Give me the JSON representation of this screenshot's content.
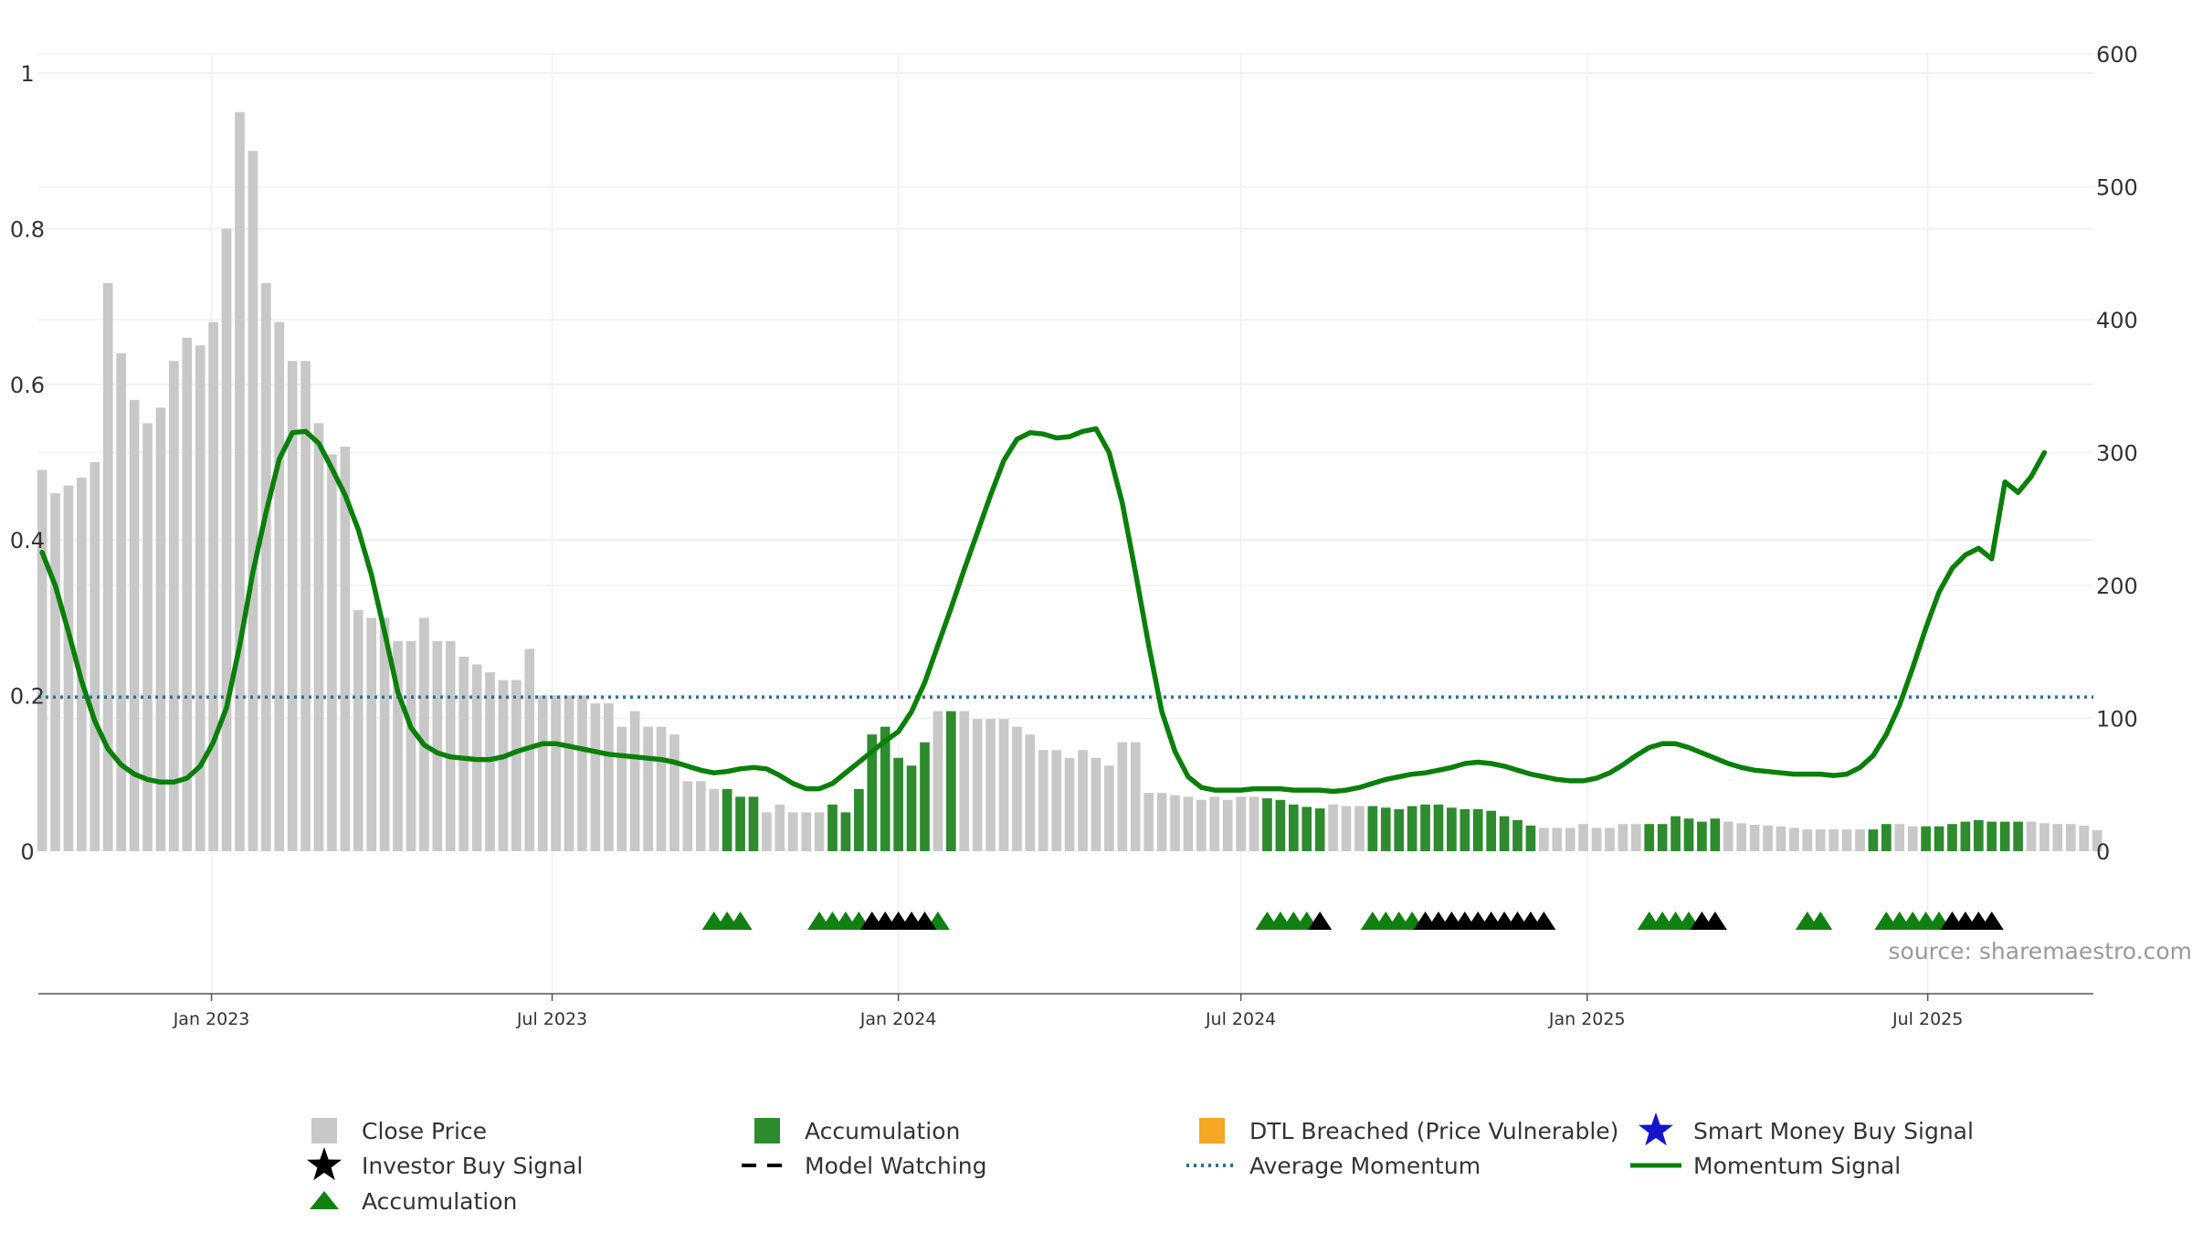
{
  "chart_data": {
    "type": "bar",
    "title": "",
    "xlabel": "",
    "ylabel_left": "",
    "ylabel_right": "",
    "left_axis": {
      "ylim": [
        0,
        1
      ],
      "ticks": [
        0,
        0.2,
        0.4,
        0.6,
        0.8,
        1
      ],
      "tick_labels": [
        "0",
        "0.2",
        "0.4",
        "0.6",
        "0.8",
        "1"
      ]
    },
    "right_axis": {
      "ylim": [
        0,
        620
      ],
      "ticks": [
        0,
        100,
        200,
        300,
        400,
        500,
        600
      ],
      "tick_labels": [
        "0",
        "100",
        "200",
        "300",
        "400",
        "500",
        "600"
      ]
    },
    "x_range": [
      "2022-10-01",
      "2025-09-27"
    ],
    "x_ticks": [
      {
        "date": "2023-01-01",
        "label": "Jan 2023"
      },
      {
        "date": "2023-07-01",
        "label": "Jul 2023"
      },
      {
        "date": "2024-01-01",
        "label": "Jan 2024"
      },
      {
        "date": "2024-07-01",
        "label": "Jul 2024"
      },
      {
        "date": "2025-01-01",
        "label": "Jan 2025"
      },
      {
        "date": "2025-07-01",
        "label": "Jul 2025"
      }
    ],
    "grid": true,
    "legend_position": "bottom",
    "source_text": "source: sharemaestro.com",
    "colors": {
      "close_price": "#c8c8c8",
      "accumulation_bar": "#2e8b2e",
      "dtl_breached": "#f5a623",
      "smart_money": "#1414cc",
      "investor_buy": "#000000",
      "accumulation_marker": "#108010",
      "model_watching": "#000000",
      "average_momentum": "#2a6f97",
      "momentum_signal": "#0a7f0a"
    },
    "bars": {
      "start_date": "2022-10-03",
      "frequency": "weekly",
      "values": [
        0.49,
        0.46,
        0.47,
        0.48,
        0.5,
        0.73,
        0.64,
        0.58,
        0.55,
        0.57,
        0.63,
        0.66,
        0.65,
        0.68,
        0.8,
        0.95,
        0.9,
        0.73,
        0.68,
        0.63,
        0.63,
        0.55,
        0.51,
        0.52,
        0.31,
        0.3,
        0.3,
        0.27,
        0.27,
        0.3,
        0.27,
        0.27,
        0.25,
        0.24,
        0.23,
        0.22,
        0.22,
        0.26,
        0.2,
        0.2,
        0.2,
        0.2,
        0.19,
        0.19,
        0.16,
        0.18,
        0.16,
        0.16,
        0.15,
        0.09,
        0.09,
        0.08,
        0.08,
        0.07,
        0.07,
        0.05,
        0.06,
        0.05,
        0.05,
        0.05,
        0.06,
        0.05,
        0.08,
        0.15,
        0.16,
        0.12,
        0.11,
        0.14,
        0.18,
        0.18,
        0.18,
        0.17,
        0.17,
        0.17,
        0.16,
        0.15,
        0.13,
        0.13,
        0.12,
        0.13,
        0.12,
        0.11,
        0.14,
        0.14,
        0.075,
        0.075,
        0.072,
        0.07,
        0.066,
        0.07,
        0.066,
        0.07,
        0.07,
        0.068,
        0.066,
        0.06,
        0.057,
        0.055,
        0.06,
        0.058,
        0.058,
        0.058,
        0.056,
        0.054,
        0.058,
        0.06,
        0.06,
        0.056,
        0.054,
        0.054,
        0.052,
        0.045,
        0.04,
        0.033,
        0.03,
        0.03,
        0.03,
        0.035,
        0.03,
        0.03,
        0.035,
        0.035,
        0.035,
        0.035,
        0.045,
        0.042,
        0.038,
        0.042,
        0.038,
        0.036,
        0.034,
        0.033,
        0.032,
        0.03,
        0.028,
        0.028,
        0.028,
        0.028,
        0.028,
        0.028,
        0.035,
        0.035,
        0.032,
        0.032,
        0.032,
        0.035,
        0.038,
        0.04,
        0.038,
        0.038,
        0.038,
        0.038,
        0.036,
        0.035,
        0.035,
        0.033,
        0.027
      ],
      "accumulation_ranges": [
        [
          52,
          54
        ],
        [
          60,
          67
        ],
        [
          69,
          69
        ],
        [
          93,
          97
        ],
        [
          101,
          113
        ],
        [
          122,
          127
        ],
        [
          139,
          140
        ],
        [
          143,
          150
        ]
      ]
    },
    "series": [
      {
        "name": "Momentum Signal",
        "axis": "right",
        "style": "solid",
        "points": [
          [
            "2022-10-03",
            225
          ],
          [
            "2022-10-10",
            200
          ],
          [
            "2022-10-17",
            165
          ],
          [
            "2022-10-24",
            128
          ],
          [
            "2022-10-31",
            98
          ],
          [
            "2022-11-07",
            77
          ],
          [
            "2022-11-14",
            65
          ],
          [
            "2022-11-21",
            58
          ],
          [
            "2022-11-28",
            54
          ],
          [
            "2022-12-05",
            52
          ],
          [
            "2022-12-12",
            52
          ],
          [
            "2022-12-19",
            55
          ],
          [
            "2022-12-26",
            64
          ],
          [
            "2023-01-02",
            82
          ],
          [
            "2023-01-09",
            108
          ],
          [
            "2023-01-16",
            155
          ],
          [
            "2023-01-23",
            210
          ],
          [
            "2023-01-30",
            255
          ],
          [
            "2023-02-06",
            295
          ],
          [
            "2023-02-13",
            315
          ],
          [
            "2023-02-20",
            316
          ],
          [
            "2023-02-27",
            307
          ],
          [
            "2023-03-06",
            288
          ],
          [
            "2023-03-13",
            268
          ],
          [
            "2023-03-20",
            242
          ],
          [
            "2023-03-27",
            208
          ],
          [
            "2023-04-03",
            165
          ],
          [
            "2023-04-10",
            120
          ],
          [
            "2023-04-17",
            93
          ],
          [
            "2023-04-24",
            80
          ],
          [
            "2023-05-01",
            74
          ],
          [
            "2023-05-08",
            71
          ],
          [
            "2023-05-15",
            70
          ],
          [
            "2023-05-22",
            69
          ],
          [
            "2023-05-29",
            69
          ],
          [
            "2023-06-05",
            71
          ],
          [
            "2023-06-12",
            75
          ],
          [
            "2023-06-19",
            78
          ],
          [
            "2023-06-26",
            81
          ],
          [
            "2023-07-03",
            81
          ],
          [
            "2023-07-10",
            79
          ],
          [
            "2023-07-17",
            77
          ],
          [
            "2023-07-24",
            75
          ],
          [
            "2023-07-31",
            73
          ],
          [
            "2023-08-07",
            72
          ],
          [
            "2023-08-14",
            71
          ],
          [
            "2023-08-21",
            70
          ],
          [
            "2023-08-28",
            69
          ],
          [
            "2023-09-04",
            67
          ],
          [
            "2023-09-11",
            64
          ],
          [
            "2023-09-18",
            61
          ],
          [
            "2023-09-25",
            59
          ],
          [
            "2023-10-02",
            60
          ],
          [
            "2023-10-09",
            62
          ],
          [
            "2023-10-16",
            63
          ],
          [
            "2023-10-23",
            62
          ],
          [
            "2023-10-30",
            57
          ],
          [
            "2023-11-06",
            51
          ],
          [
            "2023-11-13",
            47
          ],
          [
            "2023-11-20",
            47
          ],
          [
            "2023-11-27",
            51
          ],
          [
            "2023-12-04",
            59
          ],
          [
            "2023-12-11",
            67
          ],
          [
            "2023-12-18",
            75
          ],
          [
            "2023-12-25",
            83
          ],
          [
            "2024-01-01",
            90
          ],
          [
            "2024-01-08",
            105
          ],
          [
            "2024-01-15",
            127
          ],
          [
            "2024-01-22",
            155
          ],
          [
            "2024-01-29",
            183
          ],
          [
            "2024-02-05",
            212
          ],
          [
            "2024-02-12",
            240
          ],
          [
            "2024-02-19",
            268
          ],
          [
            "2024-02-26",
            294
          ],
          [
            "2024-03-04",
            310
          ],
          [
            "2024-03-11",
            315
          ],
          [
            "2024-03-18",
            314
          ],
          [
            "2024-03-25",
            311
          ],
          [
            "2024-04-01",
            312
          ],
          [
            "2024-04-08",
            316
          ],
          [
            "2024-04-15",
            318
          ],
          [
            "2024-04-22",
            300
          ],
          [
            "2024-04-29",
            262
          ],
          [
            "2024-05-06",
            210
          ],
          [
            "2024-05-13",
            155
          ],
          [
            "2024-05-20",
            105
          ],
          [
            "2024-05-27",
            75
          ],
          [
            "2024-06-03",
            56
          ],
          [
            "2024-06-10",
            48
          ],
          [
            "2024-06-17",
            46
          ],
          [
            "2024-06-24",
            46
          ],
          [
            "2024-07-01",
            46
          ],
          [
            "2024-07-08",
            47
          ],
          [
            "2024-07-15",
            47
          ],
          [
            "2024-07-22",
            47
          ],
          [
            "2024-07-29",
            46
          ],
          [
            "2024-08-05",
            46
          ],
          [
            "2024-08-12",
            46
          ],
          [
            "2024-08-19",
            45
          ],
          [
            "2024-08-26",
            46
          ],
          [
            "2024-09-02",
            48
          ],
          [
            "2024-09-09",
            51
          ],
          [
            "2024-09-16",
            54
          ],
          [
            "2024-09-23",
            56
          ],
          [
            "2024-09-30",
            58
          ],
          [
            "2024-10-07",
            59
          ],
          [
            "2024-10-14",
            61
          ],
          [
            "2024-10-21",
            63
          ],
          [
            "2024-10-28",
            66
          ],
          [
            "2024-11-04",
            67
          ],
          [
            "2024-11-11",
            66
          ],
          [
            "2024-11-18",
            64
          ],
          [
            "2024-11-25",
            61
          ],
          [
            "2024-12-02",
            58
          ],
          [
            "2024-12-09",
            56
          ],
          [
            "2024-12-16",
            54
          ],
          [
            "2024-12-23",
            53
          ],
          [
            "2024-12-30",
            53
          ],
          [
            "2025-01-06",
            55
          ],
          [
            "2025-01-13",
            59
          ],
          [
            "2025-01-20",
            65
          ],
          [
            "2025-01-27",
            72
          ],
          [
            "2025-02-03",
            78
          ],
          [
            "2025-02-10",
            81
          ],
          [
            "2025-02-17",
            81
          ],
          [
            "2025-02-24",
            78
          ],
          [
            "2025-03-03",
            74
          ],
          [
            "2025-03-10",
            70
          ],
          [
            "2025-03-17",
            66
          ],
          [
            "2025-03-24",
            63
          ],
          [
            "2025-03-31",
            61
          ],
          [
            "2025-04-07",
            60
          ],
          [
            "2025-04-14",
            59
          ],
          [
            "2025-04-21",
            58
          ],
          [
            "2025-04-28",
            58
          ],
          [
            "2025-05-05",
            58
          ],
          [
            "2025-05-12",
            57
          ],
          [
            "2025-05-19",
            58
          ],
          [
            "2025-05-26",
            63
          ],
          [
            "2025-06-02",
            72
          ],
          [
            "2025-06-09",
            88
          ],
          [
            "2025-06-16",
            110
          ],
          [
            "2025-06-23",
            138
          ],
          [
            "2025-06-30",
            168
          ],
          [
            "2025-07-07",
            195
          ],
          [
            "2025-07-14",
            213
          ],
          [
            "2025-07-21",
            223
          ],
          [
            "2025-07-28",
            228
          ],
          [
            "2025-08-04",
            220
          ],
          [
            "2025-08-11",
            278
          ],
          [
            "2025-08-18",
            270
          ],
          [
            "2025-08-25",
            282
          ],
          [
            "2025-09-01",
            300
          ]
        ]
      },
      {
        "name": "Average Momentum",
        "axis": "right",
        "style": "dotted",
        "value": 116
      }
    ],
    "markers": {
      "accumulation_triangles": [
        51,
        52,
        53,
        59,
        60,
        61,
        62,
        68,
        93,
        94,
        95,
        96,
        101,
        102,
        103,
        104,
        122,
        123,
        124,
        125,
        134,
        135,
        140,
        141,
        142,
        143,
        144
      ],
      "investor_buy_triangles": [
        63,
        64,
        65,
        66,
        67,
        97,
        105,
        106,
        107,
        108,
        109,
        110,
        111,
        112,
        113,
        114,
        126,
        127,
        145,
        146,
        147,
        148
      ]
    },
    "legend": [
      {
        "label": "Close Price",
        "icon": "square",
        "color_key": "close_price"
      },
      {
        "label": "Accumulation",
        "icon": "square",
        "color_key": "accumulation_bar"
      },
      {
        "label": "DTL Breached (Price Vulnerable)",
        "icon": "square",
        "color_key": "dtl_breached"
      },
      {
        "label": "Smart Money Buy Signal",
        "icon": "star",
        "color_key": "smart_money"
      },
      {
        "label": "Investor Buy Signal",
        "icon": "star",
        "color_key": "investor_buy"
      },
      {
        "label": "Model Watching",
        "icon": "dash",
        "color_key": "model_watching"
      },
      {
        "label": "Average Momentum",
        "icon": "dot",
        "color_key": "average_momentum"
      },
      {
        "label": "Momentum Signal",
        "icon": "line",
        "color_key": "momentum_signal"
      },
      {
        "label": "Accumulation",
        "icon": "triangle",
        "color_key": "accumulation_marker"
      }
    ]
  }
}
